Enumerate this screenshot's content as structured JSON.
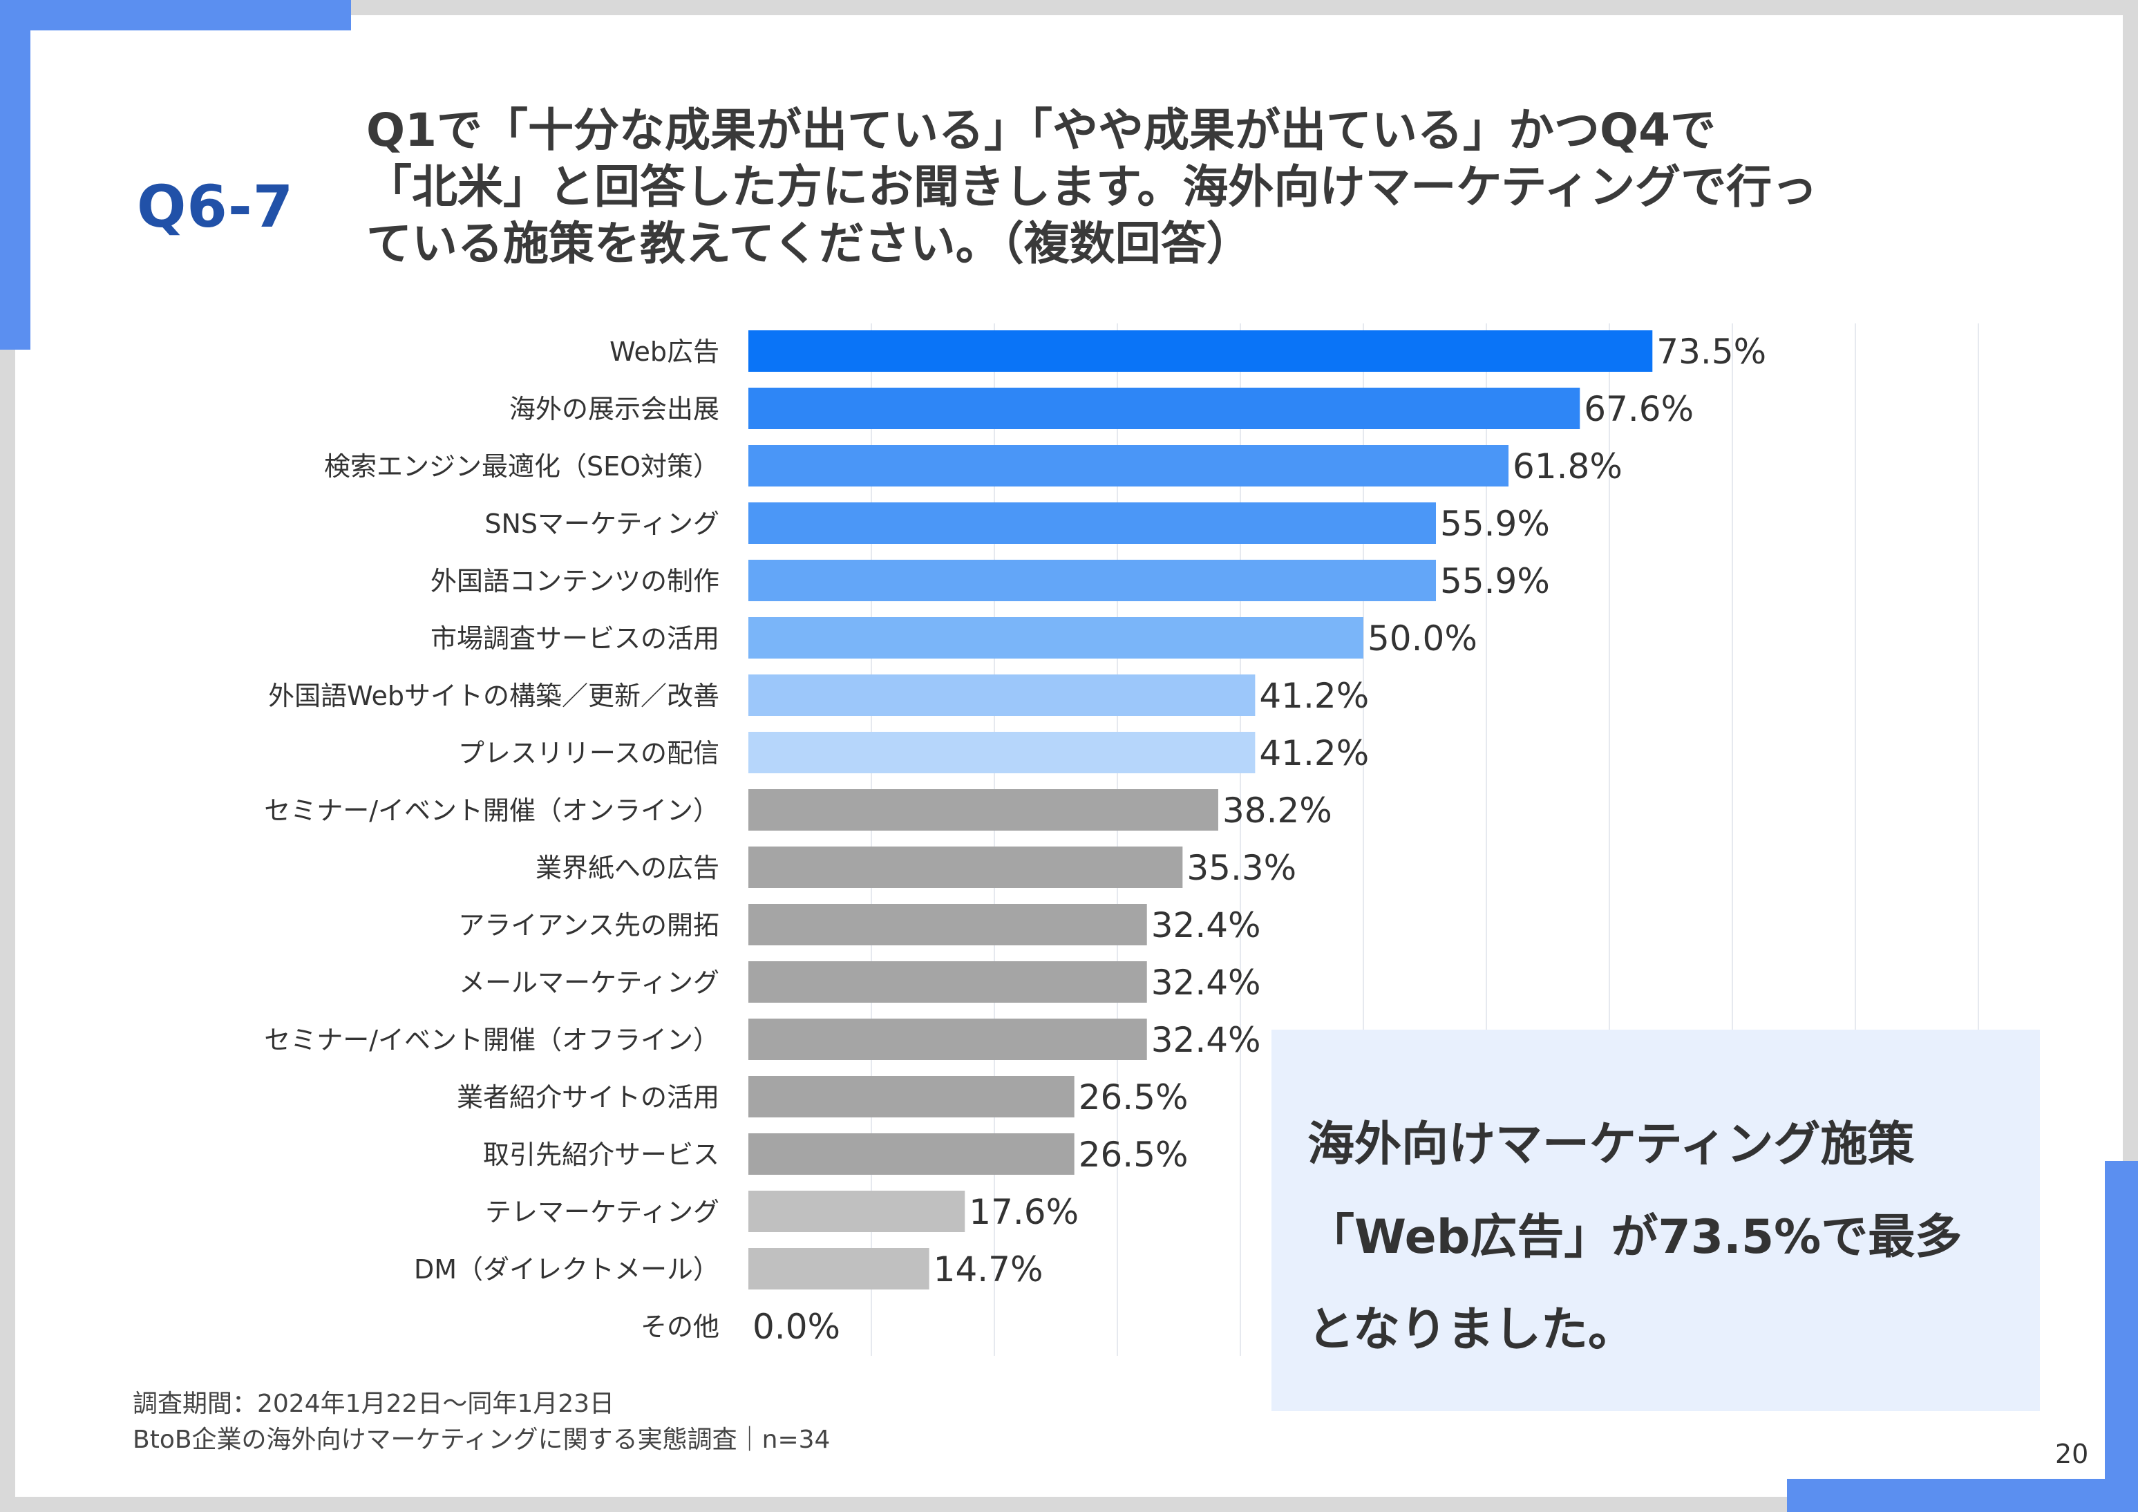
{
  "header": {
    "question_number": "Q6-7",
    "question_lines": [
      "Q1で「十分な成果が出ている」「やや成果が出ている」かつQ4で",
      "「北米」と回答した方にお聞きします。海外向けマーケティングで行っ",
      "ている施策を教えてください。（複数回答）"
    ]
  },
  "chart_data": {
    "type": "bar",
    "orientation": "horizontal",
    "categories": [
      "Web広告",
      "海外の展示会出展",
      "検索エンジン最適化（SEO対策）",
      "SNSマーケティング",
      "外国語コンテンツの制作",
      "市場調査サービスの活用",
      "外国語Webサイトの構築／更新／改善",
      "プレスリリースの配信",
      "セミナー/イベント開催（オンライン）",
      "業界紙への広告",
      "アライアンス先の開拓",
      "メールマーケティング",
      "セミナー/イベント開催（オフライン）",
      "業者紹介サイトの活用",
      "取引先紹介サービス",
      "テレマーケティング",
      "DM（ダイレクトメール）",
      "その他"
    ],
    "values": [
      73.5,
      67.6,
      61.8,
      55.9,
      55.9,
      50.0,
      41.2,
      41.2,
      38.2,
      35.3,
      32.4,
      32.4,
      32.4,
      26.5,
      26.5,
      17.6,
      14.7,
      0.0
    ],
    "value_labels": [
      "73.5%",
      "67.6%",
      "61.8%",
      "55.9%",
      "55.9%",
      "50.0%",
      "41.2%",
      "41.2%",
      "38.2%",
      "35.3%",
      "32.4%",
      "32.4%",
      "32.4%",
      "26.5%",
      "26.5%",
      "17.6%",
      "14.7%",
      "0.0%"
    ],
    "colors": [
      "#0a74f7",
      "#2e86f6",
      "#4a96f7",
      "#4b97f7",
      "#63a6f8",
      "#7ab5f9",
      "#9cc7fa",
      "#b6d6fb",
      "#a5a5a5",
      "#a5a5a5",
      "#a5a5a5",
      "#a5a5a5",
      "#a5a5a5",
      "#a5a5a5",
      "#a5a5a5",
      "#c0c0c0",
      "#c0c0c0",
      "#c0c0c0"
    ],
    "xlim": [
      0,
      100
    ],
    "grid": true,
    "unit": "%"
  },
  "callout": {
    "lines": [
      "海外向けマーケティング施策",
      "「Web広告」が73.5%で最多",
      "となりました。"
    ]
  },
  "footnote": {
    "period": "調査期間：2024年1月22日～同年1月23日",
    "survey": "BtoB企業の海外向けマーケティングに関する実態調査｜n=34"
  },
  "page_number": "20"
}
